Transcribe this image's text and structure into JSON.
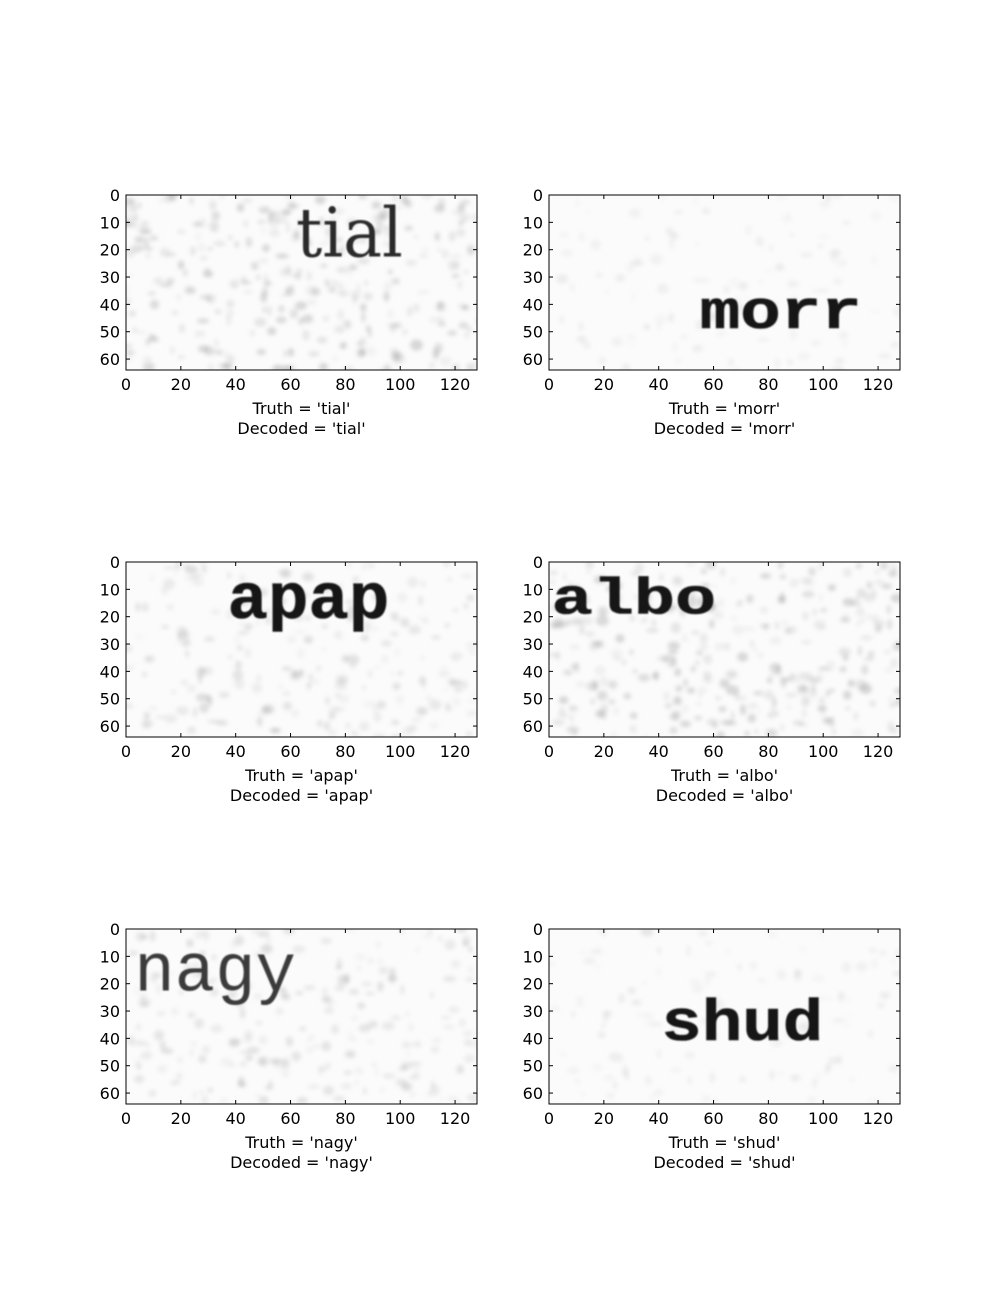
{
  "chart_data": [
    {
      "type": "image",
      "word": "tial",
      "word_style": "serif",
      "word_x": [
        62,
        101
      ],
      "word_y": [
        4,
        24
      ],
      "xticks": [
        0,
        20,
        40,
        60,
        80,
        100,
        120
      ],
      "yticks": [
        0,
        10,
        20,
        30,
        40,
        50,
        60
      ],
      "xlim": [
        0,
        128
      ],
      "ylim": [
        64,
        0
      ],
      "xlabel": "Truth = 'tial'\nDecoded = 'tial'",
      "noise": "heavy"
    },
    {
      "type": "image",
      "word": "morr",
      "word_style": "mono-bold",
      "word_x": [
        55,
        114
      ],
      "word_y": [
        34,
        50
      ],
      "xticks": [
        0,
        20,
        40,
        60,
        80,
        100,
        120
      ],
      "yticks": [
        0,
        10,
        20,
        30,
        40,
        50,
        60
      ],
      "xlim": [
        0,
        128
      ],
      "ylim": [
        64,
        0
      ],
      "xlabel": "Truth = 'morr'\nDecoded = 'morr'",
      "noise": "light"
    },
    {
      "type": "image",
      "word": "apap",
      "word_style": "mono-bold",
      "word_x": [
        37,
        96
      ],
      "word_y": [
        3,
        22
      ],
      "xticks": [
        0,
        20,
        40,
        60,
        80,
        100,
        120
      ],
      "yticks": [
        0,
        10,
        20,
        30,
        40,
        50,
        60
      ],
      "xlim": [
        0,
        128
      ],
      "ylim": [
        64,
        0
      ],
      "xlabel": "Truth = 'apap'\nDecoded = 'apap'",
      "noise": "medium"
    },
    {
      "type": "image",
      "word": "albo",
      "word_style": "mono-bold",
      "word_x": [
        1,
        61
      ],
      "word_y": [
        5,
        20
      ],
      "xticks": [
        0,
        20,
        40,
        60,
        80,
        100,
        120
      ],
      "yticks": [
        0,
        10,
        20,
        30,
        40,
        50,
        60
      ],
      "xlim": [
        0,
        128
      ],
      "ylim": [
        64,
        0
      ],
      "xlabel": "Truth = 'albo'\nDecoded = 'albo'",
      "noise": "heavy"
    },
    {
      "type": "image",
      "word": "nagy",
      "word_style": "mono-light",
      "word_x": [
        3,
        62
      ],
      "word_y": [
        4,
        24
      ],
      "xticks": [
        0,
        20,
        40,
        60,
        80,
        100,
        120
      ],
      "yticks": [
        0,
        10,
        20,
        30,
        40,
        50,
        60
      ],
      "xlim": [
        0,
        128
      ],
      "ylim": [
        64,
        0
      ],
      "xlabel": "Truth = 'nagy'\nDecoded = 'nagy'",
      "noise": "medium"
    },
    {
      "type": "image",
      "word": "shud",
      "word_style": "mono-bold",
      "word_x": [
        41,
        100
      ],
      "word_y": [
        25,
        42
      ],
      "xticks": [
        0,
        20,
        40,
        60,
        80,
        100,
        120
      ],
      "yticks": [
        0,
        10,
        20,
        30,
        40,
        50,
        60
      ],
      "xlim": [
        0,
        128
      ],
      "ylim": [
        64,
        0
      ],
      "xlabel": "Truth = 'shud'\nDecoded = 'shud'",
      "noise": "light"
    }
  ]
}
